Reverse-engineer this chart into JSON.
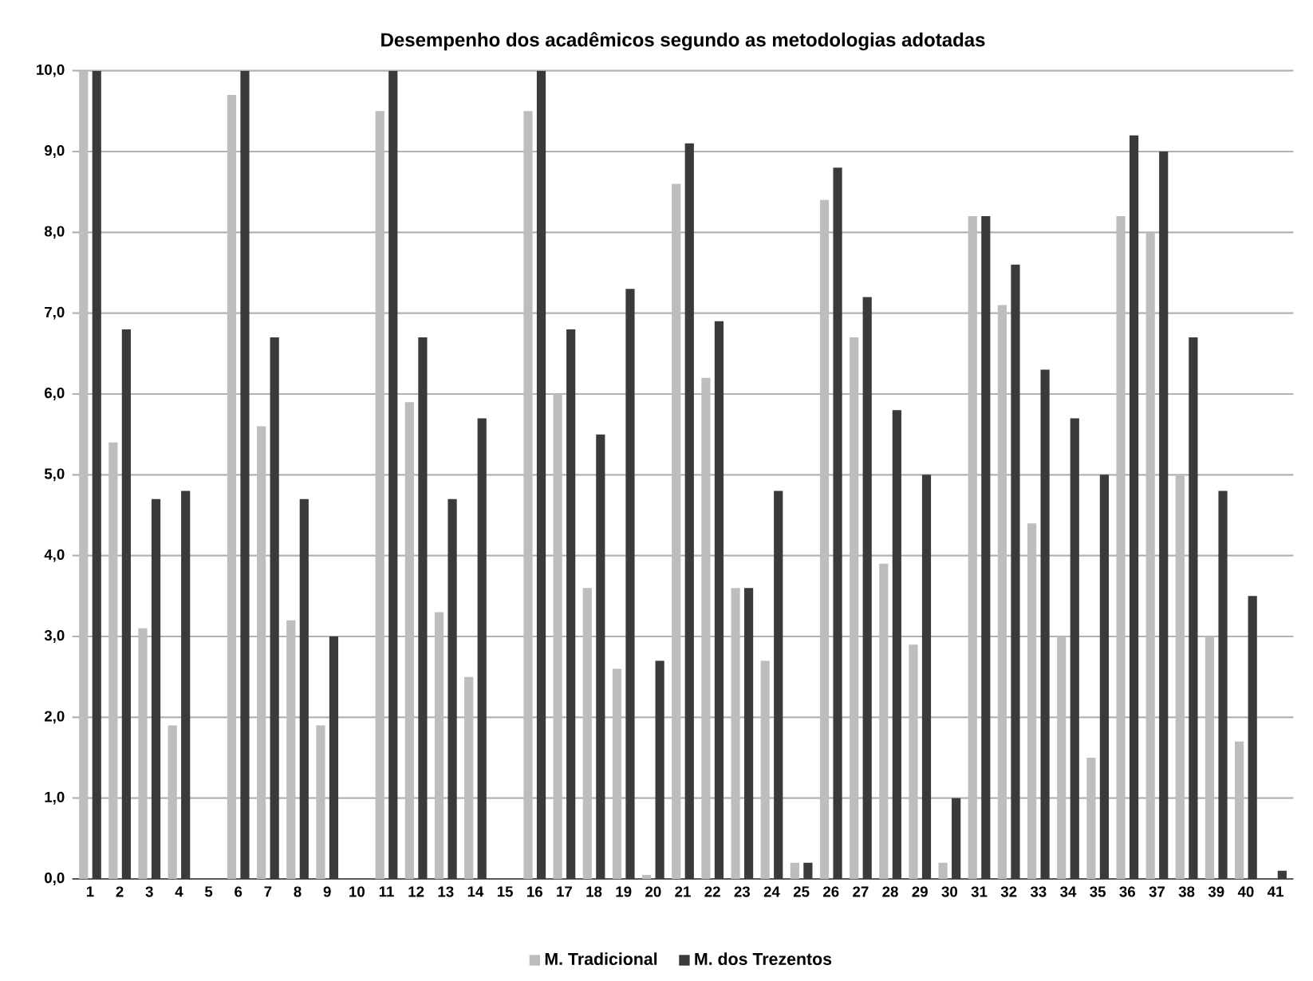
{
  "chart_data": {
    "type": "bar",
    "title": "Desempenho dos acadêmicos segundo as metodologias adotadas",
    "categories": [
      "1",
      "2",
      "3",
      "4",
      "5",
      "6",
      "7",
      "8",
      "9",
      "10",
      "11",
      "12",
      "13",
      "14",
      "15",
      "16",
      "17",
      "18",
      "19",
      "20",
      "21",
      "22",
      "23",
      "24",
      "25",
      "26",
      "27",
      "28",
      "29",
      "30",
      "31",
      "32",
      "33",
      "34",
      "35",
      "36",
      "37",
      "38",
      "39",
      "40",
      "41"
    ],
    "series": [
      {
        "name": "M. Tradicional",
        "color": "#bdbdbd",
        "values": [
          10,
          5.4,
          3.1,
          1.9,
          0,
          9.7,
          5.6,
          3.2,
          1.9,
          0,
          9.5,
          5.9,
          3.3,
          2.5,
          0,
          9.5,
          6.0,
          3.6,
          2.6,
          0.05,
          8.6,
          6.2,
          3.6,
          2.7,
          0.2,
          8.4,
          6.7,
          3.9,
          2.9,
          0.2,
          8.2,
          7.1,
          4.4,
          3.0,
          1.5,
          8.2,
          8.0,
          5.0,
          3.0,
          1.7,
          0
        ]
      },
      {
        "name": "M. dos Trezentos",
        "color": "#3a3a3a",
        "values": [
          10,
          6.8,
          4.7,
          4.8,
          0,
          10,
          6.7,
          4.7,
          3.0,
          0,
          10,
          6.7,
          4.7,
          5.7,
          0,
          10,
          6.8,
          5.5,
          7.3,
          2.7,
          9.1,
          6.9,
          3.6,
          4.8,
          0.2,
          8.8,
          7.2,
          5.8,
          5.0,
          1.0,
          8.2,
          7.6,
          6.3,
          5.7,
          5.0,
          9.2,
          9.0,
          6.7,
          4.8,
          3.5,
          0.1
        ]
      }
    ],
    "ylim": [
      0,
      10
    ],
    "yticks": [
      {
        "value": 0,
        "label": "0,0"
      },
      {
        "value": 1,
        "label": "1,0"
      },
      {
        "value": 2,
        "label": "2,0"
      },
      {
        "value": 3,
        "label": "3,0"
      },
      {
        "value": 4,
        "label": "4,0"
      },
      {
        "value": 5,
        "label": "5,0"
      },
      {
        "value": 6,
        "label": "6,0"
      },
      {
        "value": 7,
        "label": "7,0"
      },
      {
        "value": 8,
        "label": "8,0"
      },
      {
        "value": 9,
        "label": "9,0"
      },
      {
        "value": 10,
        "label": "10,0"
      }
    ],
    "grid": "y",
    "legend": "bottom"
  }
}
